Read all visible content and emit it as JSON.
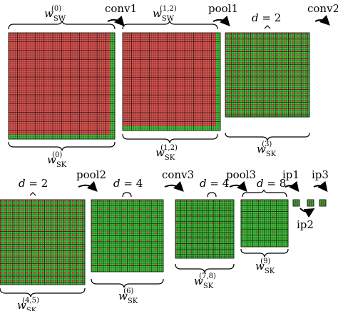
{
  "colors": {
    "red": "#d9534f",
    "green": "#41c23a",
    "grid_line": "#1a1a1a",
    "text": "#000000"
  },
  "operations": {
    "conv1": "conv1",
    "pool1": "pool1",
    "conv2": "conv2",
    "pool2": "pool2",
    "conv3": "conv3",
    "pool3": "pool3",
    "ip1": "ip1",
    "ip2": "ip2",
    "ip3": "ip3"
  },
  "dilation_labels": {
    "d_var": "d",
    "eq": " = ",
    "row1_block3": "2",
    "row2_block1": "2",
    "row2_block2": "4",
    "row2_block3": "4",
    "row2_block4": "8"
  },
  "weights": {
    "w": "w",
    "sw": "SW",
    "sk": "SK",
    "top": [
      {
        "sup": "(0)",
        "sub": "SW"
      },
      {
        "sup": "(1,2)",
        "sub": "SW"
      }
    ],
    "bottom": [
      {
        "sup": "(0)",
        "sub": "SK"
      },
      {
        "sup": "(1,2)",
        "sub": "SK"
      },
      {
        "sup": "(3)",
        "sub": "SK"
      },
      {
        "sup": "(4,5)",
        "sub": "SK"
      },
      {
        "sup": "(6)",
        "sub": "SK"
      },
      {
        "sup": "(7,8)",
        "sub": "SK"
      },
      {
        "sup": "(9)",
        "sub": "SK"
      }
    ]
  },
  "grids": [
    {
      "name": "grid-sw0",
      "n": 48,
      "pattern": "sw",
      "dilation": 0
    },
    {
      "name": "grid-sw12",
      "n": 44,
      "pattern": "sw",
      "dilation": 0
    },
    {
      "name": "grid-sk3",
      "n": 40,
      "pattern": "dilated",
      "dilation": 2
    },
    {
      "name": "grid-sk45",
      "n": 40,
      "pattern": "dilated",
      "dilation": 2
    },
    {
      "name": "grid-sk6",
      "n": 36,
      "pattern": "dilated",
      "dilation": 4
    },
    {
      "name": "grid-sk78",
      "n": 32,
      "pattern": "dilated",
      "dilation": 4
    },
    {
      "name": "grid-sk9",
      "n": 24,
      "pattern": "dilated",
      "dilation": 8
    },
    {
      "name": "grid-ip1",
      "n": 3,
      "pattern": "tiny",
      "dilation": 0
    },
    {
      "name": "grid-ip2",
      "n": 3,
      "pattern": "tiny",
      "dilation": 0
    },
    {
      "name": "grid-ip3",
      "n": 3,
      "pattern": "tiny",
      "dilation": 0
    }
  ]
}
